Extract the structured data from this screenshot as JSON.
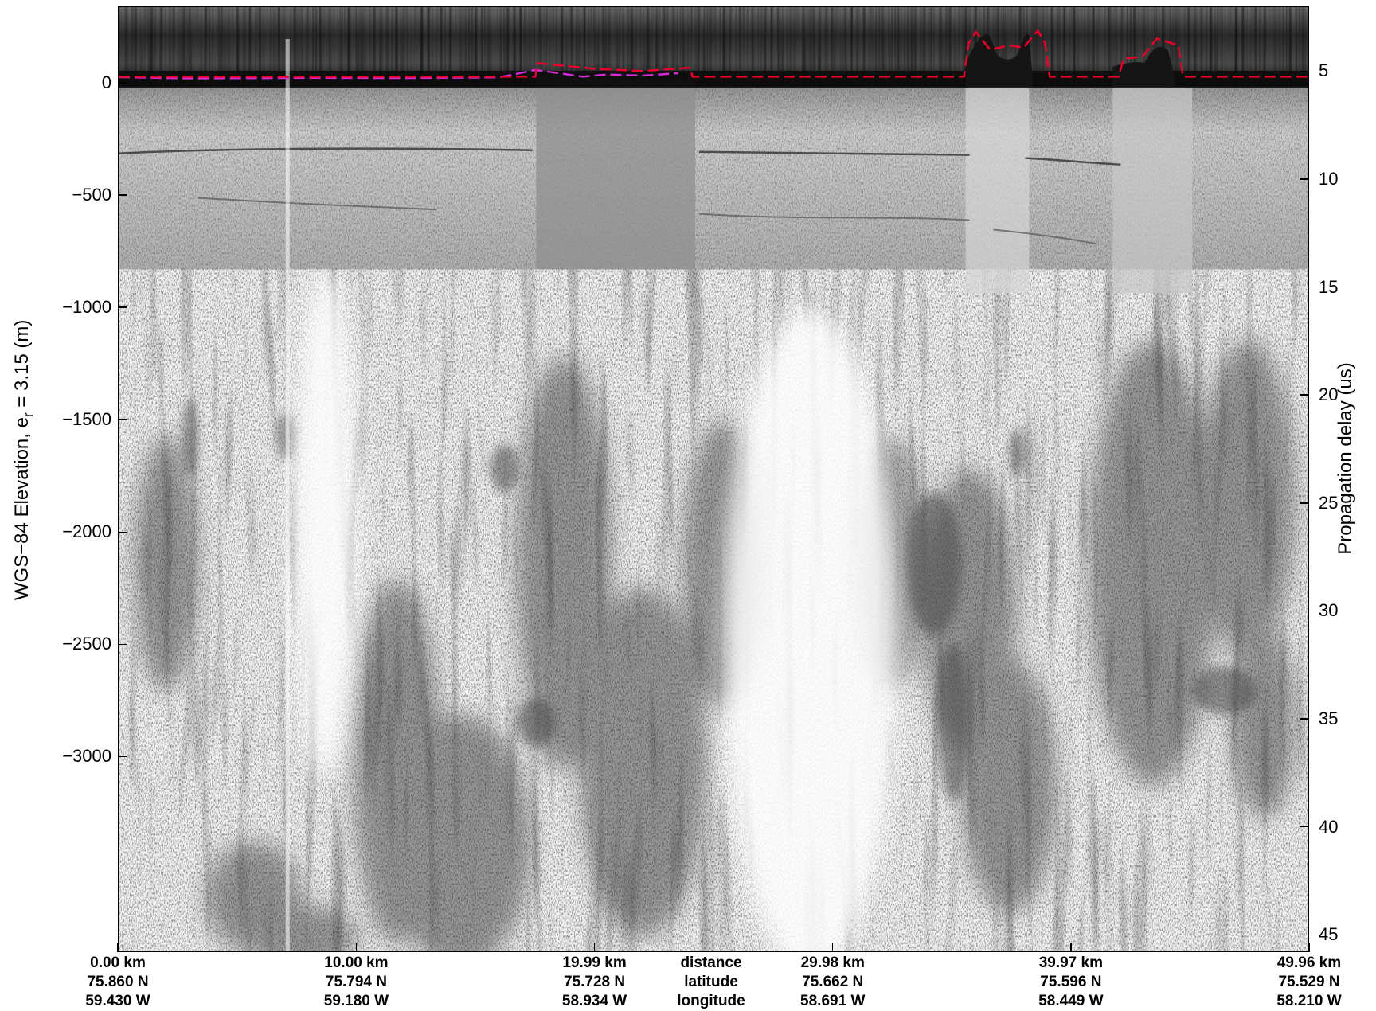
{
  "chart_data": {
    "type": "heatmap",
    "description_colormap": "grayscale",
    "title": "",
    "ylabel_left_main": "WGS−84 Elevation, e",
    "ylabel_left_sub": "r",
    "ylabel_left_tail": " = 3.15 (m)",
    "ylabel_right": "Propagation delay (us)",
    "ylim_left": [
      -3870,
      340
    ],
    "yticks_left": [
      {
        "value": 0,
        "label": "0"
      },
      {
        "value": -500,
        "label": "−500"
      },
      {
        "value": -1000,
        "label": "−1000"
      },
      {
        "value": -1500,
        "label": "−1500"
      },
      {
        "value": -2000,
        "label": "−2000"
      },
      {
        "value": -2500,
        "label": "−2500"
      },
      {
        "value": -3000,
        "label": "−3000"
      }
    ],
    "ylim_right": [
      2.0,
      45.8
    ],
    "yticks_right": [
      {
        "value": 5,
        "label": "5"
      },
      {
        "value": 10,
        "label": "10"
      },
      {
        "value": 15,
        "label": "15"
      },
      {
        "value": 20,
        "label": "20"
      },
      {
        "value": 25,
        "label": "25"
      },
      {
        "value": 30,
        "label": "30"
      },
      {
        "value": 35,
        "label": "35"
      },
      {
        "value": 40,
        "label": "40"
      },
      {
        "value": 45,
        "label": "45"
      }
    ],
    "xlim_km": [
      0,
      49.96
    ],
    "xticks": [
      {
        "km": 0.0,
        "distance": "0.00 km",
        "latitude": "75.860 N",
        "longitude": "59.430 W"
      },
      {
        "km": 10.0,
        "distance": "10.00 km",
        "latitude": "75.794 N",
        "longitude": "59.180 W"
      },
      {
        "km": 19.99,
        "distance": "19.99 km",
        "latitude": "75.728 N",
        "longitude": "58.934 W"
      },
      {
        "km": 29.98,
        "distance": "29.98 km",
        "latitude": "75.662 N",
        "longitude": "58.691 W"
      },
      {
        "km": 39.97,
        "distance": "39.97 km",
        "latitude": "75.596 N",
        "longitude": "58.449 W"
      },
      {
        "km": 49.96,
        "distance": "49.96 km",
        "latitude": "75.529 N",
        "longitude": "58.210 W"
      }
    ],
    "axis_legend_rows": {
      "distance": "distance",
      "latitude": "latitude",
      "longitude": "longitude"
    },
    "surface_trace": {
      "name": "",
      "color": "#e8002a",
      "style": "dashed",
      "x_km": [
        0,
        17.5,
        17.6,
        20,
        22,
        24,
        24.1,
        35.5,
        35.7,
        36,
        36.6,
        37.4,
        38,
        38.6,
        38.9,
        39.1,
        42.0,
        42.2,
        43,
        43.6,
        44.2,
        44.5,
        44.7,
        49.96
      ],
      "elevation_m": [
        30,
        30,
        90,
        65,
        55,
        70,
        30,
        30,
        180,
        230,
        150,
        170,
        160,
        235,
        180,
        30,
        30,
        110,
        120,
        200,
        180,
        170,
        30,
        30
      ]
    },
    "bed_trace": {
      "name": "",
      "color": "#d42bd4",
      "style": "dashed",
      "x_km": [
        0,
        3,
        8,
        12,
        16,
        17.5,
        18.5,
        19.5,
        20.5,
        22.0,
        23.5
      ],
      "elevation_m": [
        28,
        22,
        25,
        24,
        27,
        60,
        45,
        30,
        40,
        35,
        45
      ]
    },
    "grid": false,
    "legend": "none",
    "colors": {
      "frame": "#000000",
      "background": "#ffffff"
    }
  }
}
